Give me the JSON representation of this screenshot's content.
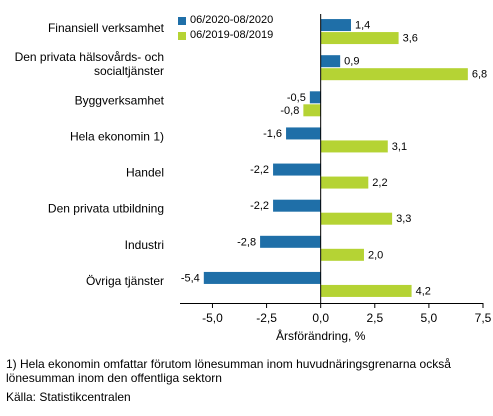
{
  "chart_data": {
    "type": "bar",
    "orientation": "horizontal",
    "categories": [
      "Finansiell verksamhet",
      "Den privata hälsovårds- och socialtjänster",
      "Byggverksamhet",
      "Hela ekonomin 1)",
      "Handel",
      "Den privata utbildning",
      "Industri",
      "Övriga tjänster"
    ],
    "category_lines": [
      [
        "Finansiell verksamhet"
      ],
      [
        "Den privata hälsovårds- och",
        "socialtjänster"
      ],
      [
        "Byggverksamhet"
      ],
      [
        "Hela ekonomin 1)"
      ],
      [
        "Handel"
      ],
      [
        "Den privata utbildning"
      ],
      [
        "Industri"
      ],
      [
        "Övriga tjänster"
      ]
    ],
    "series": [
      {
        "name": "06/2020-08/2020",
        "color": "#1f6fa8",
        "values": [
          1.4,
          0.9,
          -0.5,
          -1.6,
          -2.2,
          -2.2,
          -2.8,
          -5.4
        ],
        "labels": [
          "1,4",
          "0,9",
          "-0,5",
          "-1,6",
          "-2,2",
          "-2,2",
          "-2,8",
          "-5,4"
        ]
      },
      {
        "name": "06/2019-08/2019",
        "color": "#b5d334",
        "values": [
          3.6,
          6.8,
          -0.8,
          3.1,
          2.2,
          3.3,
          2.0,
          4.2
        ],
        "labels": [
          "3,6",
          "6,8",
          "-0,8",
          "3,1",
          "2,2",
          "3,3",
          "2,0",
          "4,2"
        ]
      }
    ],
    "xlabel": "Årsförändring, %",
    "xlim": [
      -6.5,
      7.5
    ],
    "xticks": [
      -5.0,
      -2.5,
      0.0,
      2.5,
      5.0,
      7.5
    ],
    "xtick_labels": [
      "-5,0",
      "-2,5",
      "0,0",
      "2,5",
      "5,0",
      "7,5"
    ],
    "legend_position": "top-left",
    "grid": false
  },
  "footnote": "1) Hela ekonomin omfattar förutom lönesumman inom huvudnäringsgrenarna också lönesumman inom den offentliga sektorn",
  "source": "Källa: Statistikcentralen"
}
